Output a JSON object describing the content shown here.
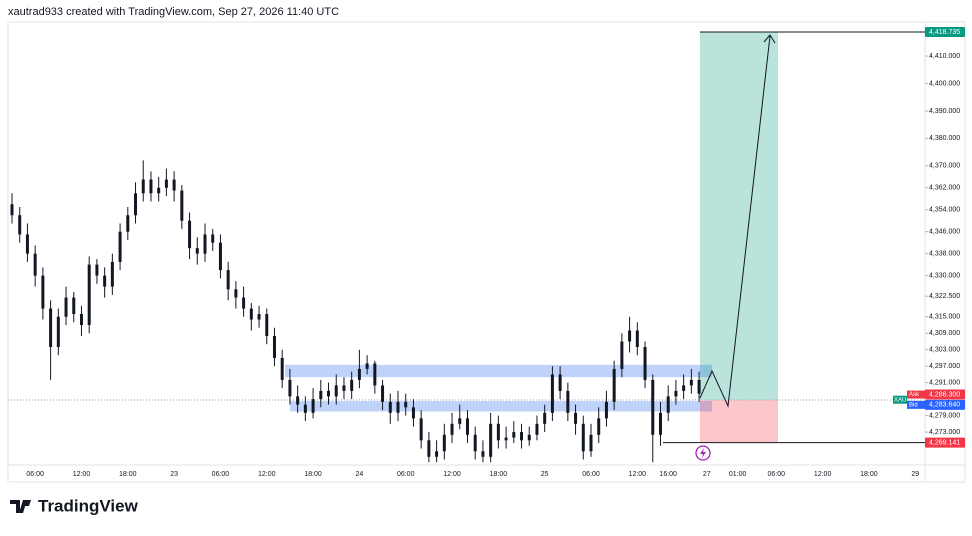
{
  "chart_data": {
    "type": "candlestick",
    "title": "xautrad933 created with TradingView.com, Sep 27, 2026 11:40 UTC",
    "brand": "TradingView",
    "up_color": "#131722",
    "down_color": "#131722",
    "categories": [
      null,
      null,
      null,
      "06:00",
      null,
      null,
      null,
      null,
      null,
      "12:00",
      null,
      null,
      null,
      null,
      null,
      "18:00",
      null,
      null,
      null,
      null,
      null,
      "23",
      null,
      null,
      null,
      null,
      null,
      "06:00",
      null,
      null,
      null,
      null,
      null,
      "12:00",
      null,
      null,
      null,
      null,
      null,
      "18:00",
      null,
      null,
      null,
      null,
      null,
      "24",
      null,
      null,
      null,
      null,
      null,
      "06:00",
      null,
      null,
      null,
      null,
      null,
      "12:00",
      null,
      null,
      null,
      null,
      null,
      "18:00",
      null,
      null,
      null,
      null,
      null,
      "25",
      null,
      null,
      null,
      null,
      null,
      "06:00",
      null,
      null,
      null,
      null,
      null,
      "12:00",
      null,
      null,
      null,
      "16:00",
      null,
      null,
      null,
      null,
      "27",
      null,
      null,
      null,
      "01:00",
      null,
      null,
      null,
      null,
      "06:00",
      null,
      null,
      null,
      null,
      null,
      "12:00",
      null,
      null,
      null,
      null,
      null,
      "18:00",
      null,
      null,
      null,
      null,
      null,
      "29"
    ],
    "open": [
      4356,
      4352,
      4345,
      4338,
      4330,
      4318,
      4304,
      4315,
      4322,
      4316,
      4312,
      4334,
      4330,
      4326,
      4335,
      4346,
      4352,
      4360,
      4365,
      4360,
      4362,
      4365,
      4361,
      4350,
      4340,
      4338,
      4345,
      4342,
      4332,
      4325,
      4322,
      4318,
      4314,
      4316,
      4308,
      4300,
      4292,
      4286,
      4283,
      4280,
      4285,
      4288,
      4286,
      4290,
      4288,
      4292,
      4296,
      4298,
      4290,
      4284,
      4280,
      4284,
      4282,
      4278,
      4270,
      4264,
      4266,
      4272,
      4276,
      4278,
      4272,
      4266,
      4264,
      4276,
      4270,
      4271,
      4273,
      4270,
      4272,
      4276,
      4280,
      4294,
      4288,
      4280,
      4276,
      4266,
      4272,
      4278,
      4284,
      4296,
      4306,
      4310,
      4304,
      4292,
      4272,
      4280,
      4286,
      4288,
      4290,
      4292,
      null,
      null,
      null,
      null,
      null,
      null,
      null,
      null,
      null,
      null,
      null,
      null,
      null,
      null,
      null,
      null,
      null,
      null,
      null,
      null,
      null,
      null,
      null,
      null,
      null,
      null,
      null,
      null
    ],
    "high": [
      4360,
      4355,
      4349,
      4341,
      4333,
      4321,
      4318,
      4326,
      4324,
      4319,
      4337,
      4336,
      4333,
      4338,
      4349,
      4355,
      4364,
      4372,
      4368,
      4366,
      4369,
      4368,
      4363,
      4353,
      4344,
      4349,
      4347,
      4345,
      4335,
      4328,
      4326,
      4320,
      4319,
      4318,
      4311,
      4303,
      4296,
      4290,
      4286,
      4289,
      4292,
      4291,
      4294,
      4293,
      4295,
      4303,
      4301,
      4299,
      4292,
      4287,
      4288,
      4287,
      4285,
      4281,
      4273,
      4270,
      4276,
      4280,
      4283,
      4281,
      4275,
      4270,
      4280,
      4279,
      4275,
      4277,
      4276,
      4275,
      4279,
      4283,
      4297,
      4297,
      4291,
      4283,
      4279,
      4276,
      4282,
      4288,
      4299,
      4309,
      4315,
      4313,
      4306,
      4294,
      4284,
      4290,
      4292,
      4294,
      4296,
      4295,
      null,
      null,
      null,
      null,
      null,
      null,
      null,
      null,
      null,
      null,
      null,
      null,
      null,
      null,
      null,
      null,
      null,
      null,
      null,
      null,
      null,
      null,
      null,
      null,
      null,
      null,
      null,
      null
    ],
    "low": [
      4349,
      4342,
      4335,
      4326,
      4314,
      4292,
      4301,
      4312,
      4313,
      4308,
      4309,
      4327,
      4322,
      4323,
      4332,
      4343,
      4349,
      4357,
      4357,
      4357,
      4359,
      4357,
      4347,
      4336,
      4334,
      4335,
      4339,
      4329,
      4321,
      4318,
      4315,
      4310,
      4311,
      4305,
      4297,
      4289,
      4283,
      4280,
      4277,
      4278,
      4282,
      4283,
      4283,
      4285,
      4285,
      4289,
      4294,
      4287,
      4281,
      4276,
      4277,
      4279,
      4275,
      4267,
      4262,
      4262,
      4263,
      4269,
      4274,
      4269,
      4263,
      4262,
      4262,
      4267,
      4267,
      4269,
      4267,
      4268,
      4270,
      4273,
      4277,
      4285,
      4277,
      4272,
      4263,
      4264,
      4269,
      4275,
      4281,
      4293,
      4302,
      4301,
      4289,
      4262,
      4268,
      4277,
      4283,
      4285,
      4287,
      4284,
      null,
      null,
      null,
      null,
      null,
      null,
      null,
      null,
      null,
      null,
      null,
      null,
      null,
      null,
      null,
      null,
      null,
      null,
      null,
      null,
      null,
      null,
      null,
      null,
      null,
      null,
      null,
      null
    ],
    "close": [
      4352,
      4345,
      4338,
      4330,
      4318,
      4304,
      4315,
      4322,
      4316,
      4312,
      4334,
      4330,
      4326,
      4335,
      4346,
      4352,
      4360,
      4365,
      4360,
      4362,
      4365,
      4361,
      4350,
      4340,
      4338,
      4345,
      4342,
      4332,
      4325,
      4322,
      4318,
      4314,
      4316,
      4308,
      4300,
      4292,
      4286,
      4283,
      4280,
      4285,
      4288,
      4286,
      4290,
      4288,
      4292,
      4296,
      4298,
      4290,
      4284,
      4280,
      4284,
      4282,
      4278,
      4270,
      4264,
      4266,
      4272,
      4276,
      4278,
      4272,
      4266,
      4264,
      4276,
      4270,
      4271,
      4273,
      4270,
      4272,
      4276,
      4280,
      4294,
      4288,
      4280,
      4276,
      4266,
      4272,
      4278,
      4284,
      4296,
      4306,
      4310,
      4304,
      4292,
      4272,
      4280,
      4286,
      4288,
      4290,
      4292,
      4287,
      null,
      null,
      null,
      null,
      null,
      null,
      null,
      null,
      null,
      null,
      null,
      null,
      null,
      null,
      null,
      null,
      null,
      null,
      null,
      null,
      null,
      null,
      null,
      null,
      null,
      null,
      null,
      null
    ],
    "ylim": [
      4261.0,
      4422.4
    ],
    "yticks": [
      {
        "value": 4410,
        "label": "4,410.000"
      },
      {
        "value": 4400,
        "label": "4,400.000"
      },
      {
        "value": 4390,
        "label": "4,390.000"
      },
      {
        "value": 4380,
        "label": "4,380.000"
      },
      {
        "value": 4370,
        "label": "4,370.000"
      },
      {
        "value": 4362,
        "label": "4,362.000"
      },
      {
        "value": 4354,
        "label": "4,354.000"
      },
      {
        "value": 4346,
        "label": "4,346.000"
      },
      {
        "value": 4338,
        "label": "4,338.000"
      },
      {
        "value": 4330,
        "label": "4,330.000"
      },
      {
        "value": 4322.5,
        "label": "4,322.500"
      },
      {
        "value": 4315,
        "label": "4,315.000"
      },
      {
        "value": 4309,
        "label": "4,309.000"
      },
      {
        "value": 4303,
        "label": "4,303.000"
      },
      {
        "value": 4297,
        "label": "4,297.000"
      },
      {
        "value": 4291,
        "label": "4,291.000"
      },
      {
        "value": 4279,
        "label": "4,279.000"
      },
      {
        "value": 4273,
        "label": "4,273.000"
      }
    ],
    "zone_color": "#a9c4f8",
    "zones": [
      {
        "low": 4293,
        "high": 4297.5
      },
      {
        "low": 4280.5,
        "high": 4284.3
      }
    ],
    "position": {
      "target": {
        "value": 4418.735,
        "label": "4,418.735"
      },
      "entry": 4284.7,
      "stop": {
        "value": 4269.141,
        "label": "4,269.141"
      },
      "profit_color": "#089981",
      "loss_color": "#f23645"
    },
    "symbol": "XAU",
    "ask": {
      "label": "Ask",
      "price": {
        "value": 4286.3,
        "label": "4,286.300"
      },
      "color": "#f23645"
    },
    "bid": {
      "label": "Bid",
      "price": {
        "value": 4283.64,
        "label": "4,283.640"
      },
      "color": "#2962ff"
    }
  }
}
